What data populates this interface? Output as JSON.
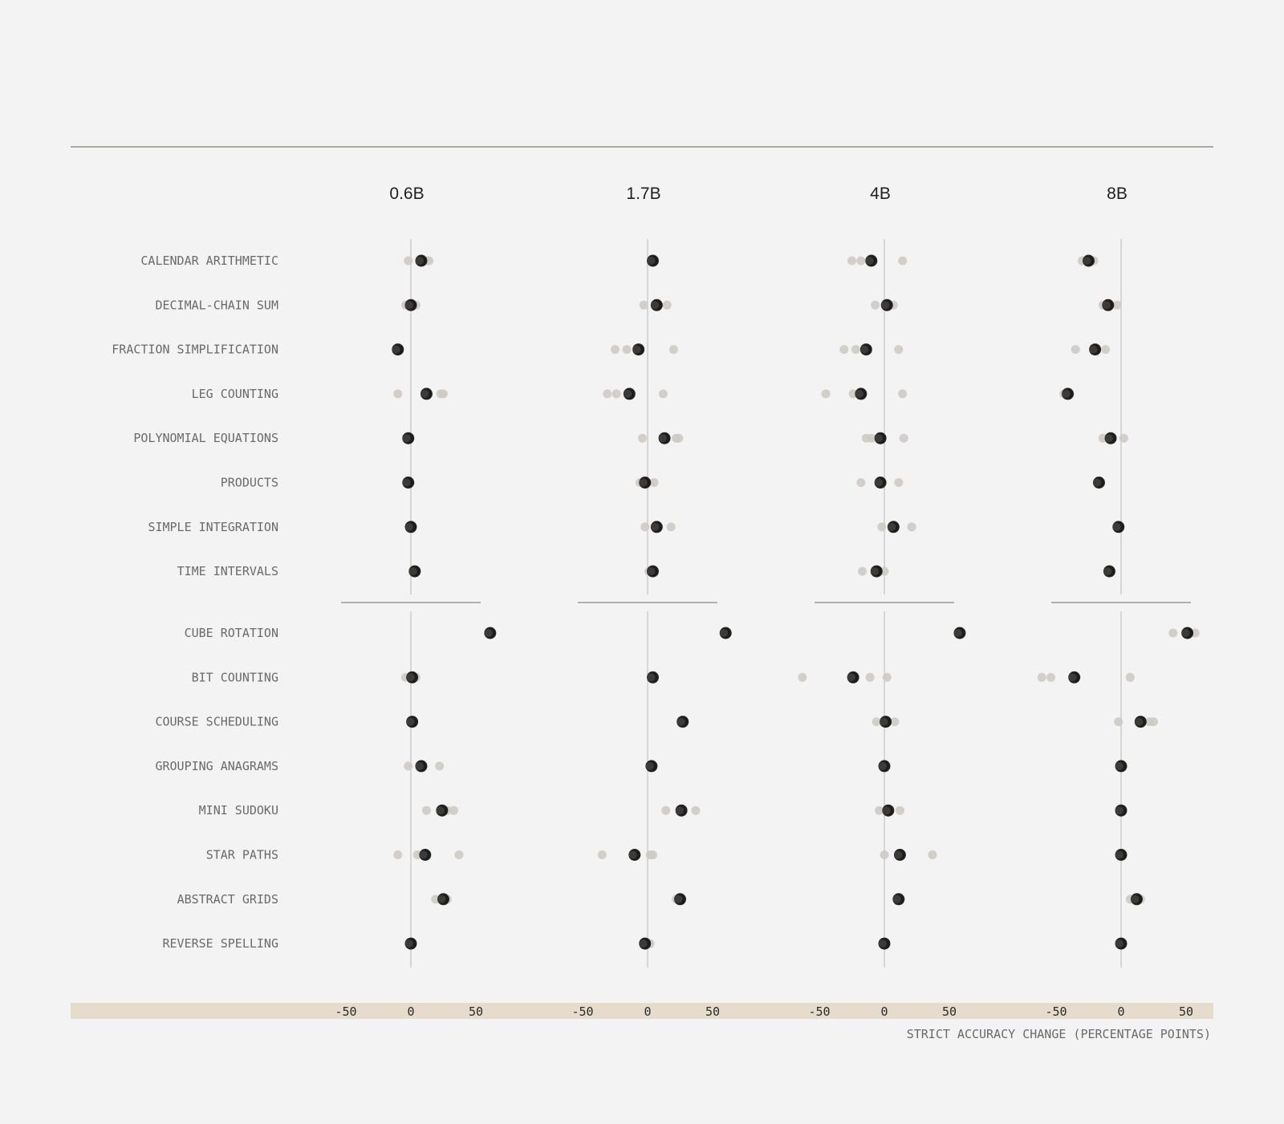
{
  "chart_data": {
    "type": "scatter",
    "panels": [
      "0.6B",
      "1.7B",
      "4B",
      "8B"
    ],
    "xlim": [
      -50,
      50
    ],
    "ticks": [
      -50,
      0,
      50
    ],
    "xlabel": "STRICT ACCURACY CHANGE (PERCENTAGE POINTS)",
    "groups": [
      [
        "CALENDAR ARITHMETIC",
        "DECIMAL-CHAIN SUM",
        "FRACTION SIMPLIFICATION",
        "LEG COUNTING",
        "POLYNOMIAL EQUATIONS",
        "PRODUCTS",
        "SIMPLE INTEGRATION",
        "TIME INTERVALS"
      ],
      [
        "CUBE ROTATION",
        "BIT COUNTING",
        "COURSE SCHEDULING",
        "GROUPING ANAGRAMS",
        "MINI SUDOKU",
        "STAR PATHS",
        "ABSTRACT GRIDS",
        "REVERSE SPELLING"
      ]
    ],
    "rows": [
      {
        "label": "CALENDAR ARITHMETIC",
        "mean": [
          8,
          4,
          -10,
          -25
        ],
        "runs": [
          [
            -2,
            8,
            12,
            14
          ],
          [
            4
          ],
          [
            -25,
            -18,
            -10,
            14
          ],
          [
            -30,
            -25,
            -21
          ]
        ]
      },
      {
        "label": "DECIMAL-CHAIN SUM",
        "mean": [
          0,
          7,
          2,
          -10
        ],
        "runs": [
          [
            -4,
            0,
            4
          ],
          [
            -3,
            7,
            15
          ],
          [
            -7,
            2,
            7
          ],
          [
            -14,
            -10,
            -3
          ]
        ]
      },
      {
        "label": "FRACTION SIMPLIFICATION",
        "mean": [
          -10,
          -7,
          -14,
          -20
        ],
        "runs": [
          [
            -10
          ],
          [
            -25,
            -16,
            -7,
            20
          ],
          [
            -31,
            -22,
            -14,
            11
          ],
          [
            -35,
            -20,
            -12
          ]
        ]
      },
      {
        "label": "LEG COUNTING",
        "mean": [
          12,
          -14,
          -18,
          -41
        ],
        "runs": [
          [
            -10,
            12,
            23,
            25
          ],
          [
            -31,
            -24,
            -14,
            12
          ],
          [
            -45,
            -24,
            -18,
            14
          ],
          [
            -44,
            -41
          ]
        ]
      },
      {
        "label": "POLYNOMIAL EQUATIONS",
        "mean": [
          -2,
          13,
          -3,
          -8
        ],
        "runs": [
          [
            -2
          ],
          [
            -4,
            13,
            22,
            24
          ],
          [
            -14,
            -10,
            -3,
            15
          ],
          [
            -14,
            -8,
            2
          ]
        ]
      },
      {
        "label": "PRODUCTS",
        "mean": [
          -2,
          -2,
          -3,
          -17
        ],
        "runs": [
          [
            -2
          ],
          [
            -6,
            -2,
            5
          ],
          [
            -18,
            -3,
            11
          ],
          [
            -17
          ]
        ]
      },
      {
        "label": "SIMPLE INTEGRATION",
        "mean": [
          0,
          7,
          7,
          -2
        ],
        "runs": [
          [
            0
          ],
          [
            -2,
            7,
            18
          ],
          [
            -2,
            7,
            21
          ],
          [
            -2
          ]
        ]
      },
      {
        "label": "TIME INTERVALS",
        "mean": [
          3,
          4,
          -6,
          -9
        ],
        "runs": [
          [
            3
          ],
          [
            1,
            4
          ],
          [
            -17,
            -6,
            0
          ],
          [
            -9
          ]
        ]
      },
      {
        "label": "CUBE ROTATION",
        "mean": [
          61,
          60,
          58,
          51
        ],
        "runs": [
          [
            61
          ],
          [
            60
          ],
          [
            58
          ],
          [
            40,
            51,
            57
          ]
        ]
      },
      {
        "label": "BIT COUNTING",
        "mean": [
          1,
          4,
          -24,
          -36
        ],
        "runs": [
          [
            -4,
            1,
            4
          ],
          [
            4
          ],
          [
            -63,
            -24,
            -11,
            2
          ],
          [
            -61,
            -54,
            -36,
            7
          ]
        ]
      },
      {
        "label": "COURSE SCHEDULING",
        "mean": [
          1,
          27,
          1,
          15
        ],
        "runs": [
          [
            1
          ],
          [
            27
          ],
          [
            -6,
            1,
            8
          ],
          [
            -2,
            15,
            22,
            25
          ]
        ]
      },
      {
        "label": "GROUPING ANAGRAMS",
        "mean": [
          8,
          3,
          0,
          0
        ],
        "runs": [
          [
            -2,
            8,
            22
          ],
          [
            3
          ],
          [
            0
          ],
          [
            0
          ]
        ]
      },
      {
        "label": "MINI SUDOKU",
        "mean": [
          24,
          26,
          3,
          0
        ],
        "runs": [
          [
            12,
            24,
            28,
            33
          ],
          [
            14,
            26,
            37
          ],
          [
            -4,
            3,
            12
          ],
          [
            0
          ]
        ]
      },
      {
        "label": "STAR PATHS",
        "mean": [
          11,
          -10,
          12,
          0
        ],
        "runs": [
          [
            -10,
            5,
            11,
            37
          ],
          [
            -35,
            -10,
            2,
            4
          ],
          [
            0,
            12,
            37
          ],
          [
            0
          ]
        ]
      },
      {
        "label": "ABSTRACT GRIDS",
        "mean": [
          25,
          25,
          11,
          12
        ],
        "runs": [
          [
            19,
            25,
            28
          ],
          [
            22,
            25
          ],
          [
            11
          ],
          [
            7,
            12,
            15
          ]
        ]
      },
      {
        "label": "REVERSE SPELLING",
        "mean": [
          0,
          -2,
          0,
          0
        ],
        "runs": [
          [
            0
          ],
          [
            -2,
            2
          ],
          [
            0
          ],
          [
            0
          ]
        ]
      }
    ],
    "colors": {
      "mean": "#1c1c1c",
      "mean_dim": "#5a5650",
      "run": "#cfcac3",
      "zero_line": "#b9b9b9",
      "axis_band": "#e6dccb",
      "rule": "#a7ab9f"
    }
  }
}
